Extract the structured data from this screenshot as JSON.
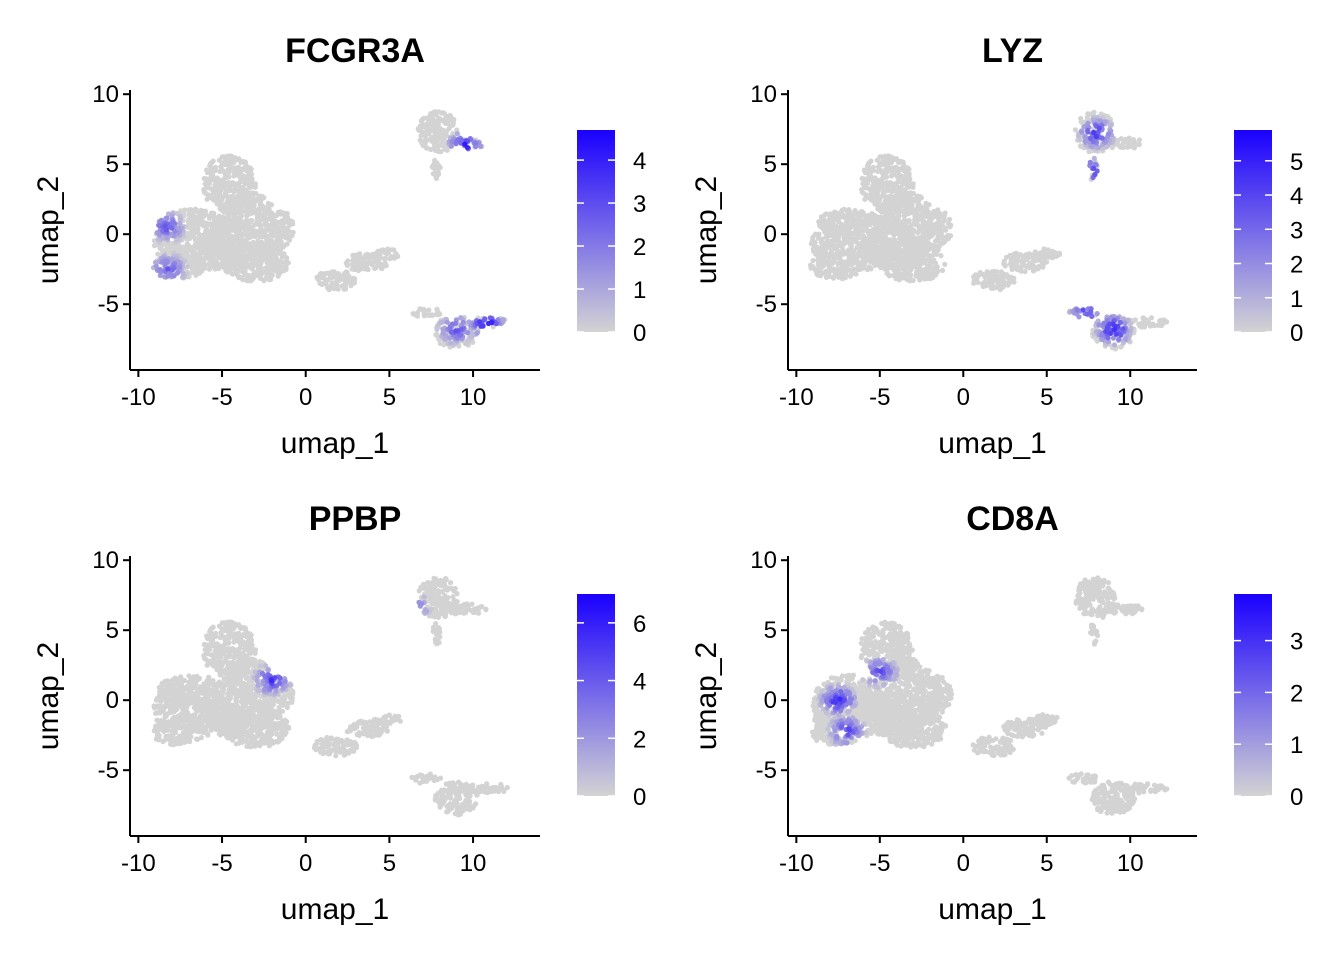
{
  "chart_data": [
    {
      "type": "scatter",
      "title": "FCGR3A",
      "xlabel": "umap_1",
      "ylabel": "umap_2",
      "xlim": [
        -10.5,
        14
      ],
      "ylim": [
        -9.7,
        10.3
      ],
      "xticks": [
        "-10",
        "-5",
        "0",
        "5",
        "10"
      ],
      "yticks": [
        "-5",
        "0",
        "5",
        "10"
      ],
      "legend": {
        "position": "right",
        "min": 0,
        "max": 4.7,
        "ticks": [
          "0",
          "1",
          "2",
          "3",
          "4"
        ],
        "low_color": "#d3d3d3",
        "high_color": "#1a00ff"
      },
      "grid": false,
      "expression_hotspots": [
        {
          "cluster": "upper-right",
          "x": 9.5,
          "y": 6.3,
          "level": 0.85
        },
        {
          "cluster": "lower-right",
          "x": 10.8,
          "y": -6.3,
          "level": 0.9
        },
        {
          "cluster": "lower-right",
          "x": 9.0,
          "y": -6.8,
          "level": 0.6
        },
        {
          "cluster": "left",
          "x": -8.3,
          "y": 0.5,
          "level": 0.6
        },
        {
          "cluster": "left",
          "x": -8.2,
          "y": -2.5,
          "level": 0.55
        }
      ]
    },
    {
      "type": "scatter",
      "title": "LYZ",
      "xlabel": "umap_1",
      "ylabel": "umap_2",
      "xlim": [
        -10.5,
        14
      ],
      "ylim": [
        -9.7,
        10.3
      ],
      "xticks": [
        "-10",
        "-5",
        "0",
        "5",
        "10"
      ],
      "yticks": [
        "-5",
        "0",
        "5",
        "10"
      ],
      "legend": {
        "position": "right",
        "min": 0,
        "max": 5.9,
        "ticks": [
          "0",
          "1",
          "2",
          "3",
          "4",
          "5"
        ],
        "low_color": "#d3d3d3",
        "high_color": "#1a00ff"
      },
      "grid": false,
      "expression_hotspots": [
        {
          "cluster": "upper-right",
          "x": 8.0,
          "y": 7.2,
          "level": 0.75
        },
        {
          "cluster": "upper-right",
          "x": 7.6,
          "y": 4.5,
          "level": 0.7
        },
        {
          "cluster": "lower-right",
          "x": 9.0,
          "y": -6.8,
          "level": 0.9
        },
        {
          "cluster": "lower-right",
          "x": 7.3,
          "y": -5.6,
          "level": 0.65
        }
      ]
    },
    {
      "type": "scatter",
      "title": "PPBP",
      "xlabel": "umap_1",
      "ylabel": "umap_2",
      "xlim": [
        -10.5,
        14
      ],
      "ylim": [
        -9.7,
        10.3
      ],
      "xticks": [
        "-10",
        "-5",
        "0",
        "5",
        "10"
      ],
      "yticks": [
        "-5",
        "0",
        "5",
        "10"
      ],
      "legend": {
        "position": "right",
        "min": 0,
        "max": 7.0,
        "ticks": [
          "0",
          "2",
          "4",
          "6"
        ],
        "low_color": "#d3d3d3",
        "high_color": "#1a00ff"
      },
      "grid": false,
      "expression_hotspots": [
        {
          "cluster": "center-left",
          "x": -2.0,
          "y": 1.5,
          "level": 0.75
        },
        {
          "cluster": "upper-right",
          "x": 6.3,
          "y": 6.6,
          "level": 0.6
        }
      ]
    },
    {
      "type": "scatter",
      "title": "CD8A",
      "xlabel": "umap_1",
      "ylabel": "umap_2",
      "xlim": [
        -10.5,
        14
      ],
      "ylim": [
        -9.7,
        10.3
      ],
      "xticks": [
        "-10",
        "-5",
        "0",
        "5",
        "10"
      ],
      "yticks": [
        "-5",
        "0",
        "5",
        "10"
      ],
      "legend": {
        "position": "right",
        "min": 0,
        "max": 3.9,
        "ticks": [
          "0",
          "1",
          "2",
          "3"
        ],
        "low_color": "#d3d3d3",
        "high_color": "#1a00ff"
      },
      "grid": false,
      "expression_hotspots": [
        {
          "cluster": "left",
          "x": -7.5,
          "y": 0.0,
          "level": 0.8
        },
        {
          "cluster": "left",
          "x": -5.0,
          "y": 2.0,
          "level": 0.6
        },
        {
          "cluster": "left",
          "x": -7.0,
          "y": -2.2,
          "level": 0.7
        }
      ]
    }
  ]
}
